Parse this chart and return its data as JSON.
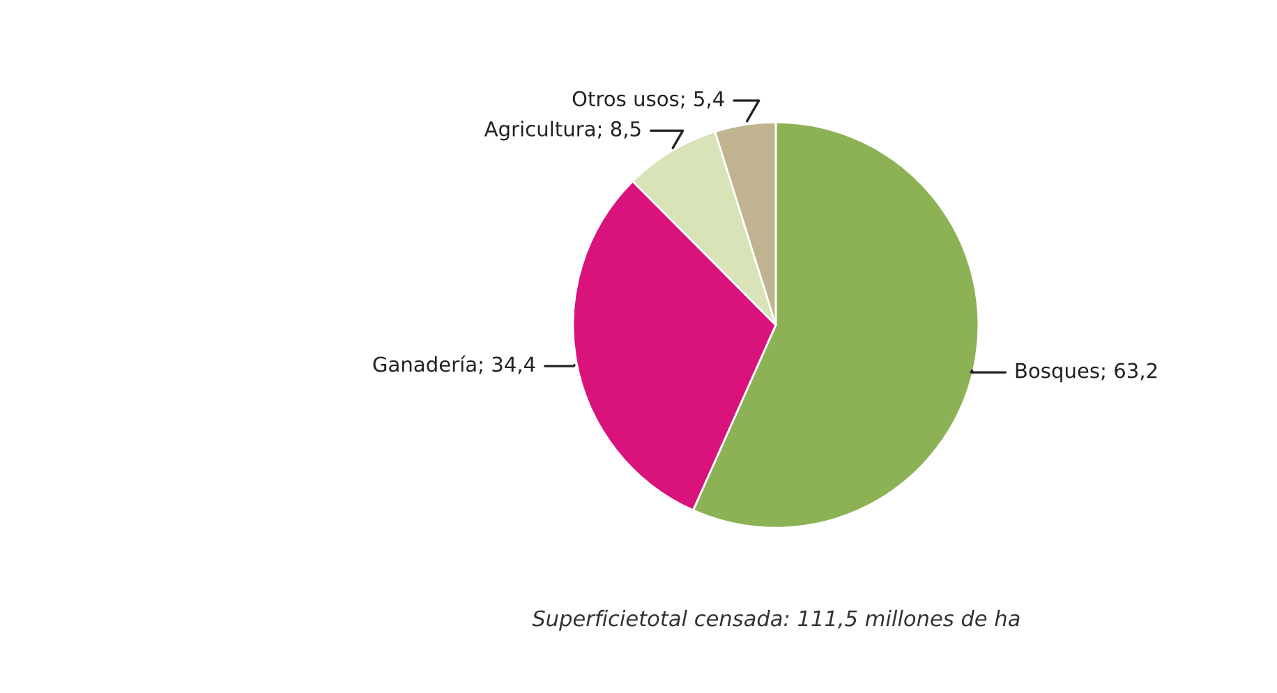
{
  "chart_data": {
    "type": "pie",
    "categories": [
      "Bosques",
      "Ganadería",
      "Agricultura",
      "Otros usos"
    ],
    "values": [
      63.2,
      34.4,
      8.5,
      5.4
    ],
    "value_labels": [
      "63,2",
      "34,4",
      "8,5",
      "5,4"
    ],
    "colors": [
      "#8db255",
      "#d9127c",
      "#d8e3b8",
      "#bfb48f"
    ],
    "annotations": [
      "Superficietotal censada: 111,5 millones de ha"
    ]
  }
}
